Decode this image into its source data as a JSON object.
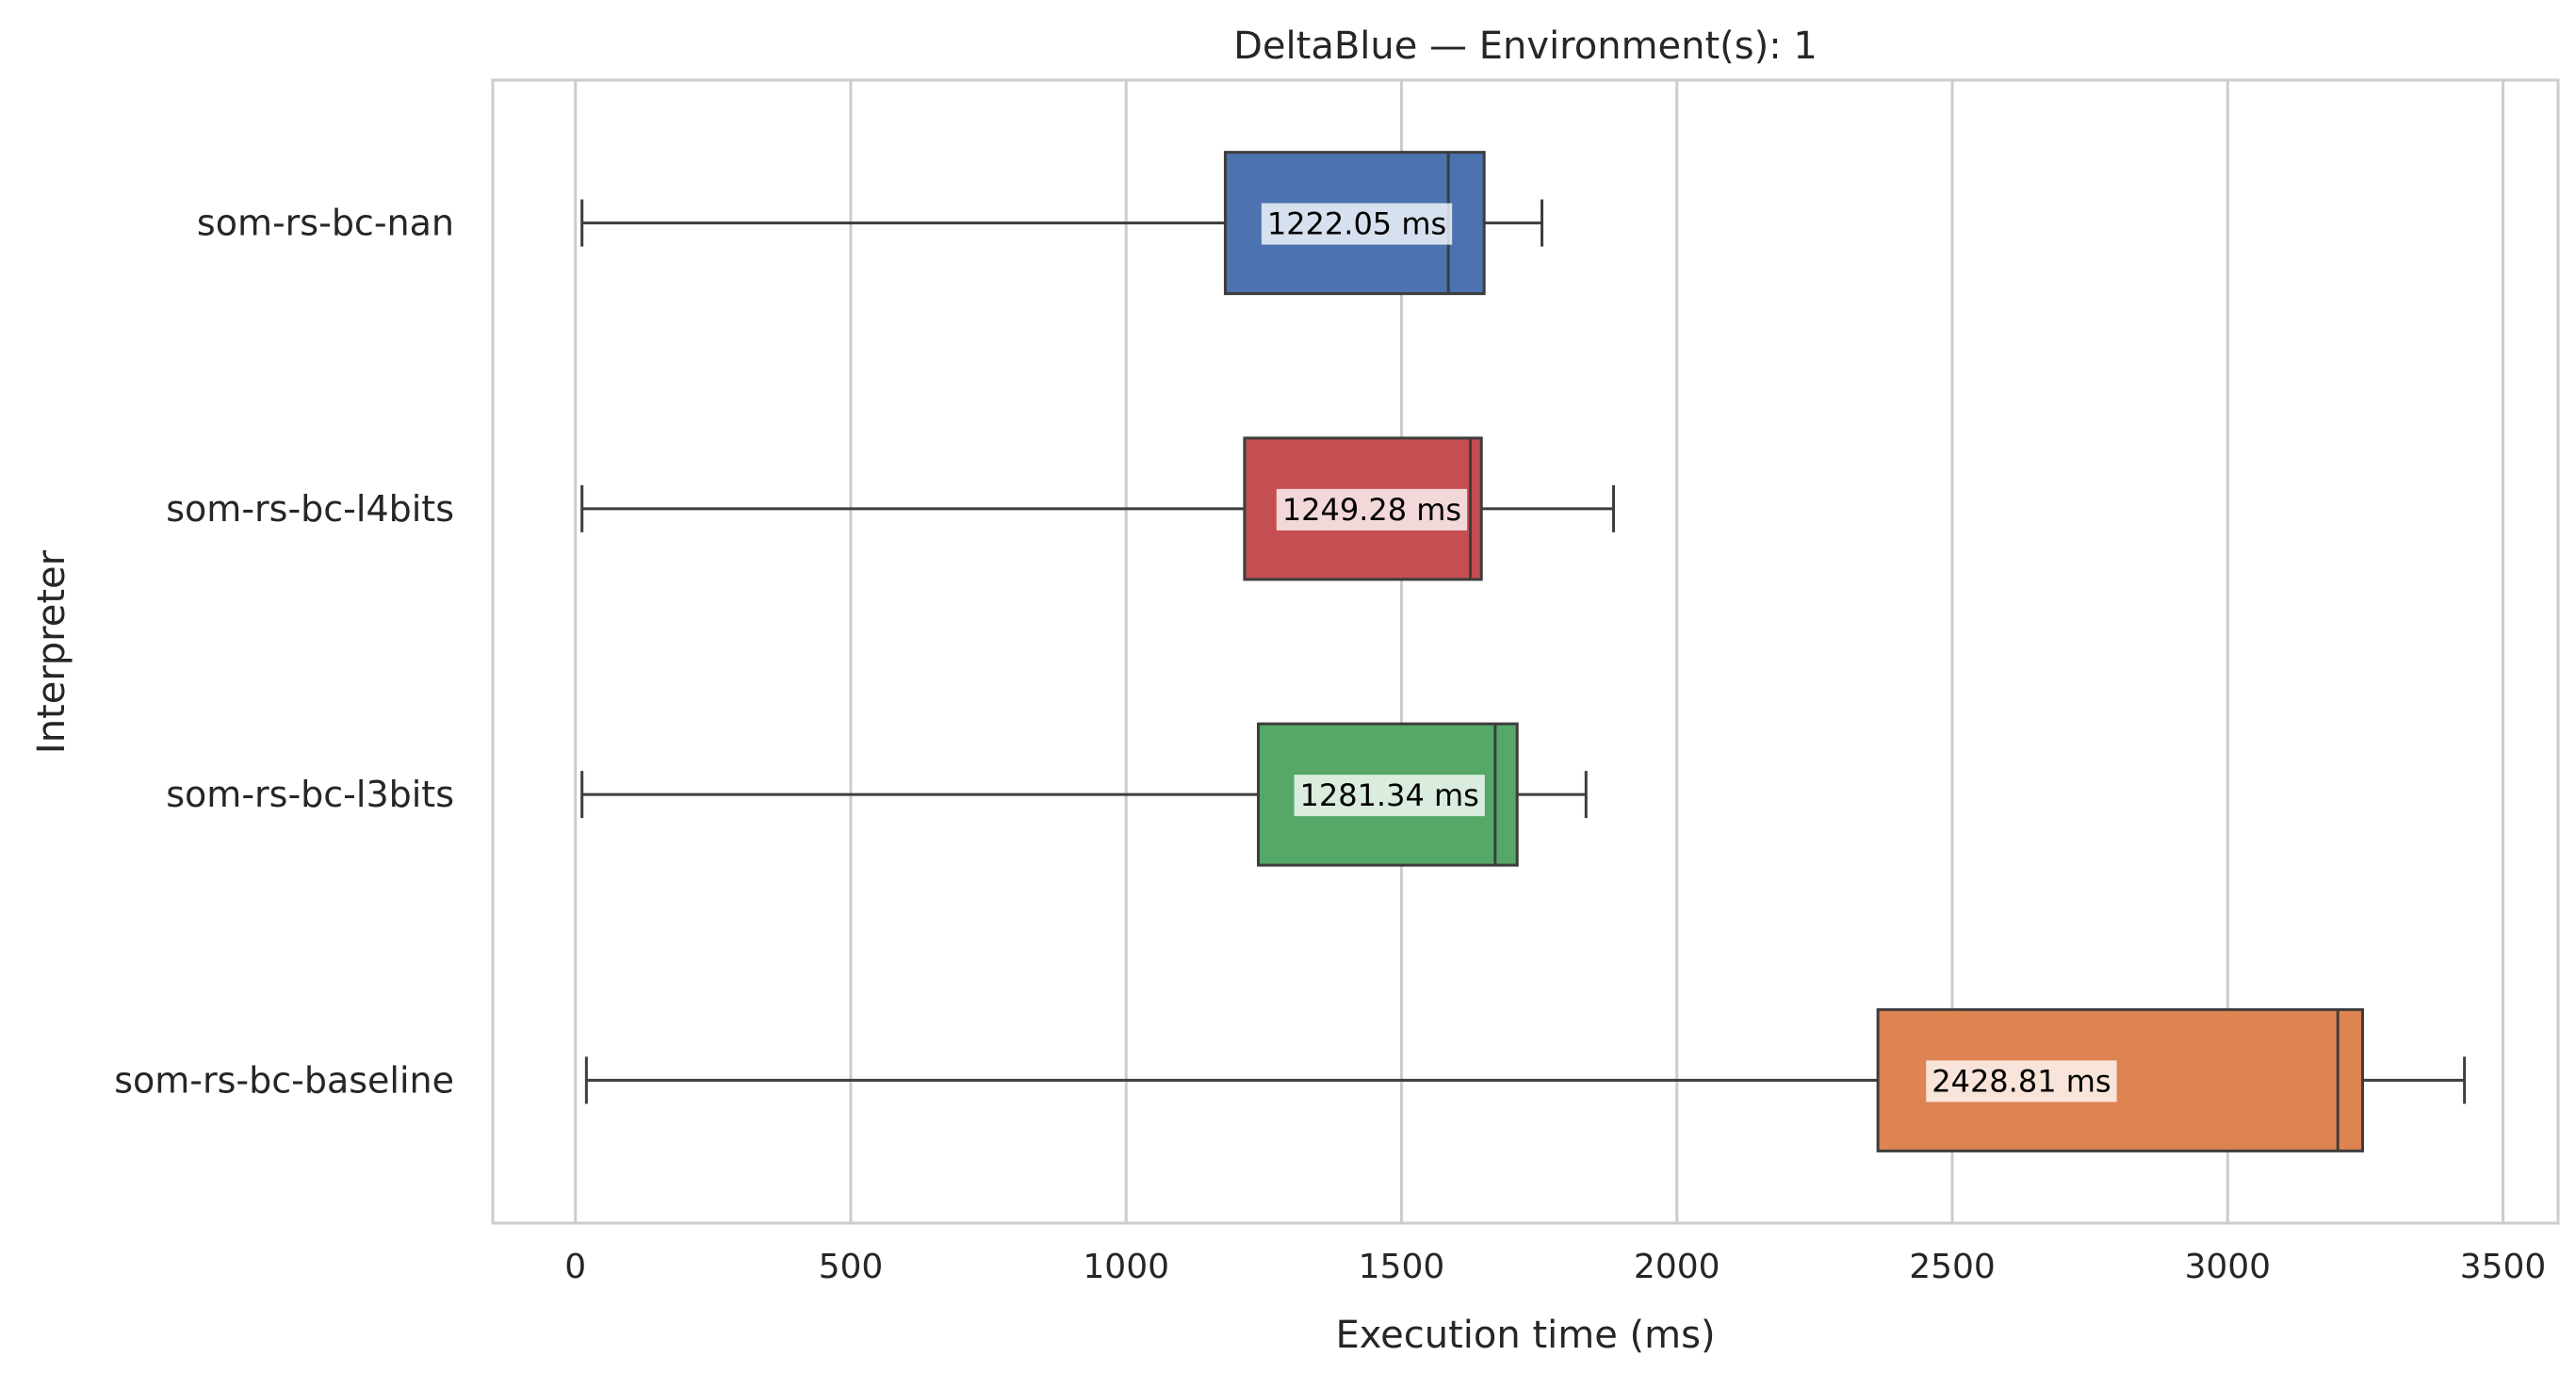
{
  "chart_data": {
    "type": "boxplot",
    "orientation": "horizontal",
    "title": "DeltaBlue — Environment(s): 1",
    "xlabel": "Execution time (ms)",
    "ylabel": "Interpreter",
    "xlim": [
      -150,
      3600
    ],
    "xticks": [
      0,
      500,
      1000,
      1500,
      2000,
      2500,
      3000,
      3500
    ],
    "xtick_labels": [
      "0",
      "500",
      "1000",
      "1500",
      "2000",
      "2500",
      "3000",
      "3500"
    ],
    "grid": "vertical",
    "legend": "none",
    "series": [
      {
        "category": "som-rs-bc-nan",
        "color": "#4c72b0",
        "whisker_low": 12,
        "q1": 1180,
        "median": 1585,
        "q3": 1650,
        "whisker_high": 1755,
        "annotation_value": 1222.05,
        "annotation": "1222.05 ms"
      },
      {
        "category": "som-rs-bc-l4bits",
        "color": "#c44e52",
        "whisker_low": 12,
        "q1": 1215,
        "median": 1625,
        "q3": 1645,
        "whisker_high": 1885,
        "annotation_value": 1249.28,
        "annotation": "1249.28 ms"
      },
      {
        "category": "som-rs-bc-l3bits",
        "color": "#55a868",
        "whisker_low": 12,
        "q1": 1240,
        "median": 1670,
        "q3": 1710,
        "whisker_high": 1835,
        "annotation_value": 1281.34,
        "annotation": "1281.34 ms"
      },
      {
        "category": "som-rs-bc-baseline",
        "color": "#dd8452",
        "whisker_low": 20,
        "q1": 2365,
        "median": 3200,
        "q3": 3245,
        "whisker_high": 3430,
        "annotation_value": 2428.81,
        "annotation": "2428.81 ms"
      }
    ]
  }
}
